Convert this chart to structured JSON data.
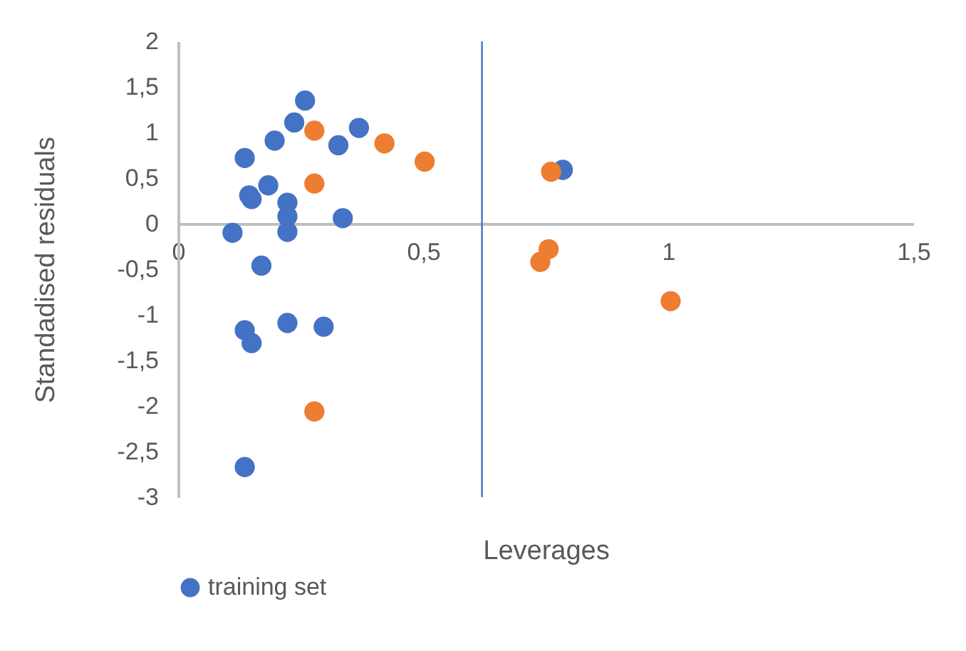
{
  "chart_data": {
    "type": "scatter",
    "xlabel": "Leverages",
    "ylabel": "Standadised residuals",
    "xlim": [
      0,
      1.5
    ],
    "ylim": [
      -3,
      2
    ],
    "xticks": [
      {
        "value": 0,
        "label": "0"
      },
      {
        "value": 0.5,
        "label": "0,5"
      },
      {
        "value": 1,
        "label": "1"
      },
      {
        "value": 1.5,
        "label": "1,5"
      }
    ],
    "yticks": [
      {
        "value": -3,
        "label": "-3"
      },
      {
        "value": -2.5,
        "label": "-2,5"
      },
      {
        "value": -2,
        "label": "-2"
      },
      {
        "value": -1.5,
        "label": "-1,5"
      },
      {
        "value": -1,
        "label": "-1"
      },
      {
        "value": -0.5,
        "label": "-0,5"
      },
      {
        "value": 0,
        "label": "0"
      },
      {
        "value": 0.5,
        "label": "0,5"
      },
      {
        "value": 1,
        "label": "1"
      },
      {
        "value": 1.5,
        "label": "1,5"
      },
      {
        "value": 2,
        "label": "2"
      }
    ],
    "grid": false,
    "legend": "bottom",
    "marker": "circle",
    "ref_lines": [
      {
        "axis": "x",
        "value": 0.62,
        "color": "#4472c4"
      }
    ],
    "series": [
      {
        "name": "training set",
        "color": "#4472c4",
        "x": [
          0.259,
          0.237,
          0.369,
          0.197,
          0.327,
          0.136,
          0.184,
          0.145,
          0.15,
          0.223,
          0.223,
          0.336,
          0.111,
          0.223,
          0.17,
          0.223,
          0.297,
          0.136,
          0.15,
          0.136,
          0.785
        ],
        "values": [
          1.35,
          1.11,
          1.05,
          0.91,
          0.86,
          0.72,
          0.42,
          0.31,
          0.27,
          0.23,
          0.08,
          0.06,
          -0.1,
          -0.09,
          -0.46,
          -1.09,
          -1.13,
          -1.17,
          -1.31,
          -2.67,
          0.59
        ]
      },
      {
        "color": "#ed7d31",
        "x": [
          0.278,
          0.421,
          0.503,
          0.278,
          0.278,
          0.761,
          0.756,
          0.739,
          1.005
        ],
        "values": [
          1.02,
          0.88,
          0.68,
          0.44,
          -2.06,
          0.57,
          -0.28,
          -0.42,
          -0.85
        ]
      }
    ]
  }
}
